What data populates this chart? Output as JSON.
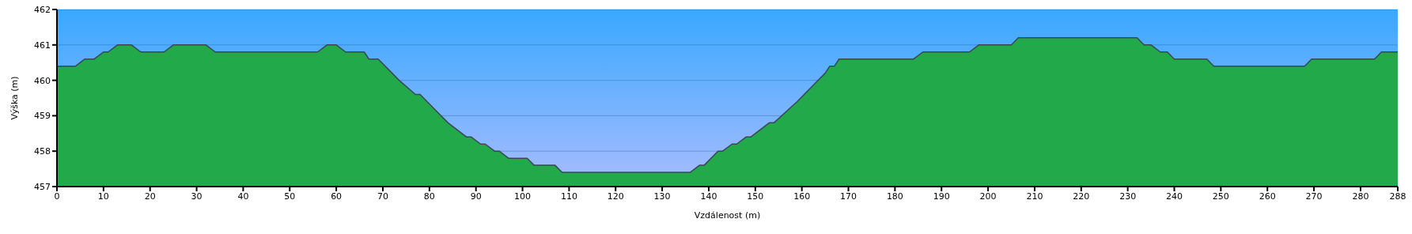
{
  "chart_data": {
    "type": "area",
    "xlabel": "Vzdálenost   (m)",
    "ylabel": "Výška (m)",
    "x": [
      0,
      4,
      6,
      8,
      10,
      11,
      13,
      16,
      18,
      23,
      25,
      32,
      34,
      56,
      58,
      60,
      62,
      66,
      67,
      69,
      72,
      73.5,
      77,
      78,
      81,
      84,
      86,
      88,
      89,
      91,
      92,
      94,
      95,
      97,
      101,
      102.5,
      107,
      108.5,
      136,
      138,
      139,
      142,
      143,
      145,
      146,
      148,
      149,
      153,
      154,
      159,
      162,
      165,
      166,
      167,
      168,
      184,
      186,
      196,
      198,
      205,
      206.5,
      232,
      233.5,
      235,
      237,
      238.5,
      240,
      247,
      248.5,
      268,
      269.5,
      283,
      284.5,
      288
    ],
    "series": [
      {
        "color": "#22aa4a",
        "values": [
          460.4,
          460.4,
          460.6,
          460.6,
          460.8,
          460.8,
          461,
          461,
          460.8,
          460.8,
          461,
          461,
          460.8,
          460.8,
          461,
          461,
          460.8,
          460.8,
          460.6,
          460.6,
          460.2,
          460,
          459.6,
          459.6,
          459.2,
          458.8,
          458.6,
          458.4,
          458.4,
          458.2,
          458.2,
          458,
          458,
          457.8,
          457.8,
          457.6,
          457.6,
          457.4,
          457.4,
          457.6,
          457.6,
          458,
          458,
          458.2,
          458.2,
          458.4,
          458.4,
          458.8,
          458.8,
          459.4,
          459.8,
          460.2,
          460.4,
          460.4,
          460.6,
          460.6,
          460.8,
          460.8,
          461,
          461,
          461.2,
          461.2,
          461,
          461,
          460.8,
          460.8,
          460.6,
          460.6,
          460.4,
          460.4,
          460.6,
          460.6,
          460.8,
          460.8
        ]
      }
    ],
    "xlim": [
      0,
      288
    ],
    "xticks": [
      0,
      10,
      20,
      30,
      40,
      50,
      60,
      70,
      80,
      90,
      100,
      110,
      120,
      130,
      140,
      150,
      160,
      170,
      180,
      190,
      200,
      210,
      220,
      230,
      240,
      250,
      260,
      270,
      280,
      288
    ],
    "ylim": [
      457,
      462
    ],
    "yticks": [
      457,
      458,
      459,
      460,
      461,
      462
    ],
    "grid": "y"
  }
}
